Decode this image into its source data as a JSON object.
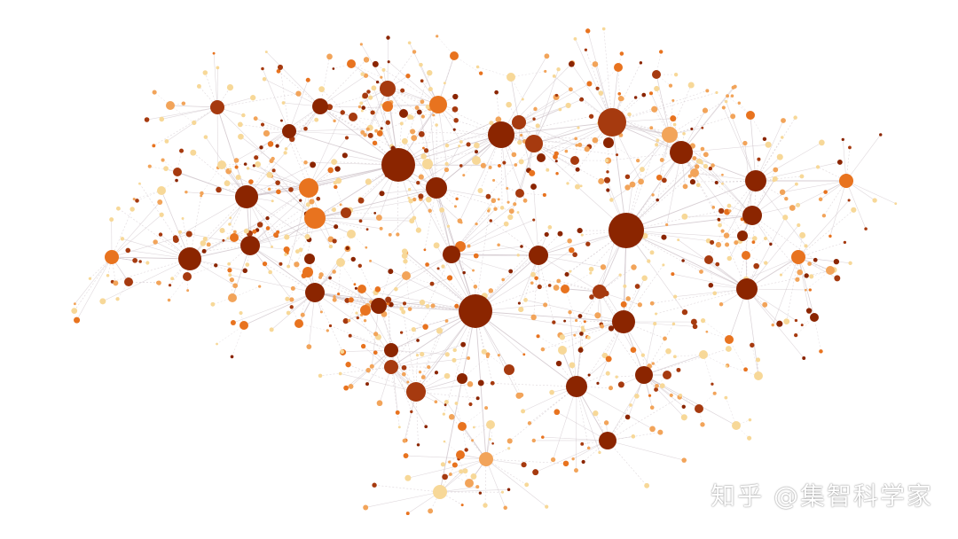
{
  "watermark": {
    "text": "知乎 @集智科学家"
  },
  "palette": {
    "dark": "#8B2500",
    "deep": "#A63A0F",
    "orange": "#E8731F",
    "light_orange": "#F2A45A",
    "pale": "#F7D898",
    "edge": "#C9BEC4"
  },
  "network": {
    "type": "network-graph"
  }
}
